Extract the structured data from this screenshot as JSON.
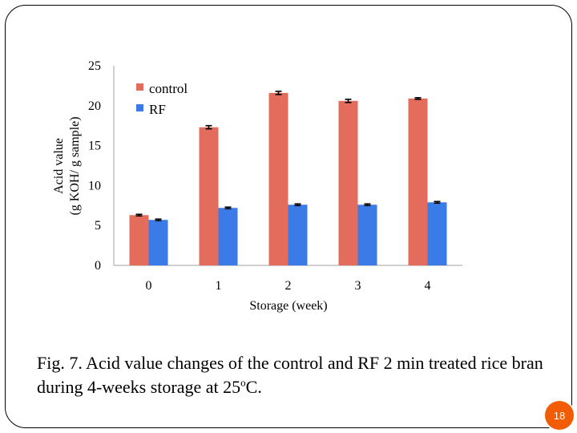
{
  "chart_data": {
    "type": "bar",
    "categories": [
      "0",
      "1",
      "2",
      "3",
      "4"
    ],
    "series": [
      {
        "name": "control",
        "values": [
          6.3,
          17.3,
          21.6,
          20.6,
          20.9
        ],
        "errors": [
          0.1,
          0.2,
          0.2,
          0.2,
          0.1
        ],
        "color": "#e46c5c"
      },
      {
        "name": "RF",
        "values": [
          5.7,
          7.2,
          7.6,
          7.6,
          7.9
        ],
        "errors": [
          0.1,
          0.1,
          0.1,
          0.1,
          0.1
        ],
        "color": "#3b7be8"
      }
    ],
    "ylim": [
      0,
      25
    ],
    "yticks": [
      "0",
      "5",
      "10",
      "15",
      "20",
      "25"
    ],
    "xlabel": "Storage (week)",
    "ylabel_line1": "Acid value",
    "ylabel_line2": "(g KOH/ g sample)",
    "legend_position": "top-left",
    "grid": false
  },
  "caption": {
    "text_before": "Fig. 7. Acid value changes of the control and RF 2 min treated rice bran during 4-weeks storage at 25",
    "superscript": "o",
    "text_after": "C."
  },
  "page_number": "18",
  "colors": {
    "accent": "#f25c05"
  }
}
